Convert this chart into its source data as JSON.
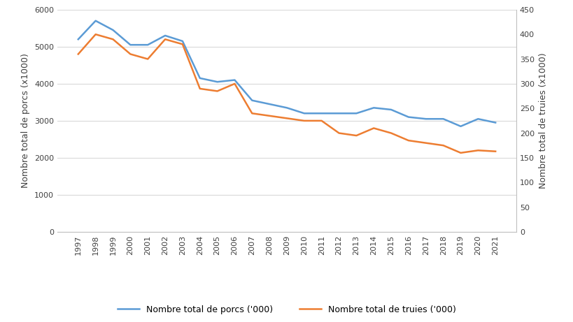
{
  "years": [
    1997,
    1998,
    1999,
    2000,
    2001,
    2002,
    2003,
    2004,
    2005,
    2006,
    2007,
    2008,
    2009,
    2010,
    2011,
    2012,
    2013,
    2014,
    2015,
    2016,
    2017,
    2018,
    2019,
    2020,
    2021
  ],
  "porcs": [
    5200,
    5700,
    5450,
    5050,
    5050,
    5300,
    5150,
    4150,
    4050,
    4100,
    3550,
    3450,
    3350,
    3200,
    3200,
    3200,
    3200,
    3350,
    3300,
    3100,
    3050,
    3050,
    2850,
    3050,
    2950
  ],
  "truies": [
    360,
    400,
    390,
    360,
    350,
    390,
    380,
    290,
    285,
    300,
    240,
    235,
    230,
    225,
    225,
    200,
    195,
    210,
    200,
    185,
    180,
    175,
    160,
    165,
    163
  ],
  "porcs_color": "#5B9BD5",
  "truies_color": "#ED7D31",
  "ylabel_left": "Nombre total de porcs (x1000)",
  "ylabel_right": "Nombre total de truies (x1000)",
  "ylim_left": [
    0,
    6000
  ],
  "ylim_right": [
    0,
    450
  ],
  "yticks_left": [
    0,
    1000,
    2000,
    3000,
    4000,
    5000,
    6000
  ],
  "yticks_right": [
    0,
    50,
    100,
    150,
    200,
    250,
    300,
    350,
    400,
    450
  ],
  "legend_porcs": "Nombre total de porcs ('000)",
  "legend_truies": "Nombre total de truies ('000)",
  "grid_color": "#D9D9D9",
  "line_width": 1.8,
  "background_color": "#FFFFFF",
  "tick_fontsize": 8,
  "ylabel_fontsize": 9,
  "legend_fontsize": 9
}
